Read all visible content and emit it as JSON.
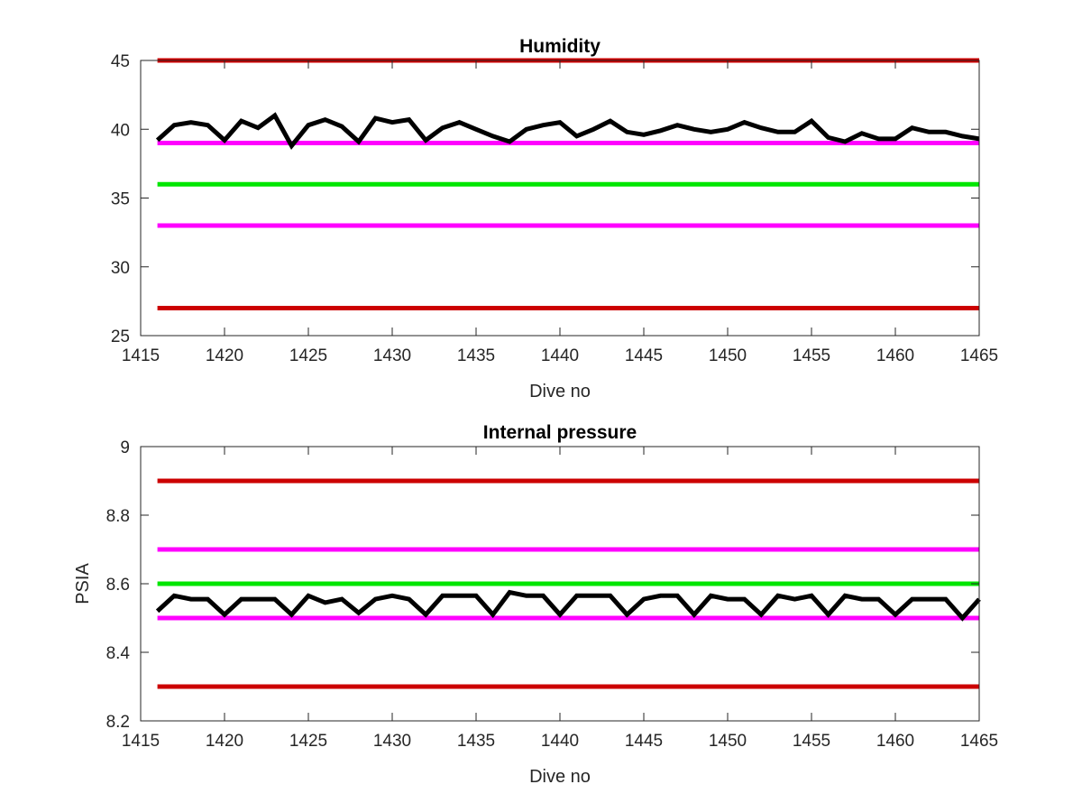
{
  "chart_data": [
    {
      "type": "line",
      "title": "Humidity",
      "xlabel": "Dive no",
      "ylabel": "",
      "xlim": [
        1415,
        1465
      ],
      "ylim": [
        25,
        45
      ],
      "xticks": [
        1415,
        1420,
        1425,
        1430,
        1435,
        1440,
        1445,
        1450,
        1455,
        1460,
        1465
      ],
      "yticks": [
        25,
        30,
        35,
        40,
        45
      ],
      "grid": false,
      "legend": "none",
      "hlines": [
        {
          "y": 45,
          "color": "#cc0000"
        },
        {
          "y": 39,
          "color": "#ff00ff"
        },
        {
          "y": 36,
          "color": "#00e600"
        },
        {
          "y": 33,
          "color": "#ff00ff"
        },
        {
          "y": 27,
          "color": "#cc0000"
        }
      ],
      "series": [
        {
          "color": "#000000",
          "x": [
            1416,
            1417,
            1418,
            1419,
            1420,
            1421,
            1422,
            1423,
            1424,
            1425,
            1426,
            1427,
            1428,
            1429,
            1430,
            1431,
            1432,
            1433,
            1434,
            1435,
            1436,
            1437,
            1438,
            1439,
            1440,
            1441,
            1442,
            1443,
            1444,
            1445,
            1446,
            1447,
            1448,
            1449,
            1450,
            1451,
            1452,
            1453,
            1454,
            1455,
            1456,
            1457,
            1458,
            1459,
            1460,
            1461,
            1462,
            1463,
            1464,
            1465
          ],
          "values": [
            39.2,
            40.3,
            40.5,
            40.3,
            39.2,
            40.6,
            40.1,
            41.0,
            38.8,
            40.3,
            40.7,
            40.2,
            39.1,
            40.8,
            40.5,
            40.7,
            39.2,
            40.1,
            40.5,
            40.0,
            39.5,
            39.1,
            40.0,
            40.3,
            40.5,
            39.5,
            40.0,
            40.6,
            39.8,
            39.6,
            39.9,
            40.3,
            40.0,
            39.8,
            40.0,
            40.5,
            40.1,
            39.8,
            39.8,
            40.6,
            39.4,
            39.1,
            39.7,
            39.3,
            39.3,
            40.1,
            39.8,
            39.8,
            39.5,
            39.3
          ]
        }
      ]
    },
    {
      "type": "line",
      "title": "Internal pressure",
      "xlabel": "Dive no",
      "ylabel": "PSIA",
      "xlim": [
        1415,
        1465
      ],
      "ylim": [
        8.2,
        9
      ],
      "xticks": [
        1415,
        1420,
        1425,
        1430,
        1435,
        1440,
        1445,
        1450,
        1455,
        1460,
        1465
      ],
      "yticks": [
        8.2,
        8.4,
        8.6,
        8.8,
        9
      ],
      "grid": false,
      "legend": "none",
      "hlines": [
        {
          "y": 8.9,
          "color": "#cc0000"
        },
        {
          "y": 8.7,
          "color": "#ff00ff"
        },
        {
          "y": 8.6,
          "color": "#00e600"
        },
        {
          "y": 8.5,
          "color": "#ff00ff"
        },
        {
          "y": 8.3,
          "color": "#cc0000"
        }
      ],
      "series": [
        {
          "color": "#000000",
          "x": [
            1416,
            1417,
            1418,
            1419,
            1420,
            1421,
            1422,
            1423,
            1424,
            1425,
            1426,
            1427,
            1428,
            1429,
            1430,
            1431,
            1432,
            1433,
            1434,
            1435,
            1436,
            1437,
            1438,
            1439,
            1440,
            1441,
            1442,
            1443,
            1444,
            1445,
            1446,
            1447,
            1448,
            1449,
            1450,
            1451,
            1452,
            1453,
            1454,
            1455,
            1456,
            1457,
            1458,
            1459,
            1460,
            1461,
            1462,
            1463,
            1464,
            1465
          ],
          "values": [
            8.52,
            8.565,
            8.555,
            8.555,
            8.51,
            8.555,
            8.555,
            8.555,
            8.51,
            8.565,
            8.545,
            8.555,
            8.515,
            8.555,
            8.565,
            8.555,
            8.51,
            8.565,
            8.565,
            8.565,
            8.51,
            8.575,
            8.565,
            8.565,
            8.51,
            8.565,
            8.565,
            8.565,
            8.51,
            8.555,
            8.565,
            8.565,
            8.51,
            8.565,
            8.555,
            8.555,
            8.51,
            8.565,
            8.555,
            8.565,
            8.51,
            8.565,
            8.555,
            8.555,
            8.51,
            8.555,
            8.555,
            8.555,
            8.5,
            8.555
          ]
        }
      ]
    }
  ]
}
